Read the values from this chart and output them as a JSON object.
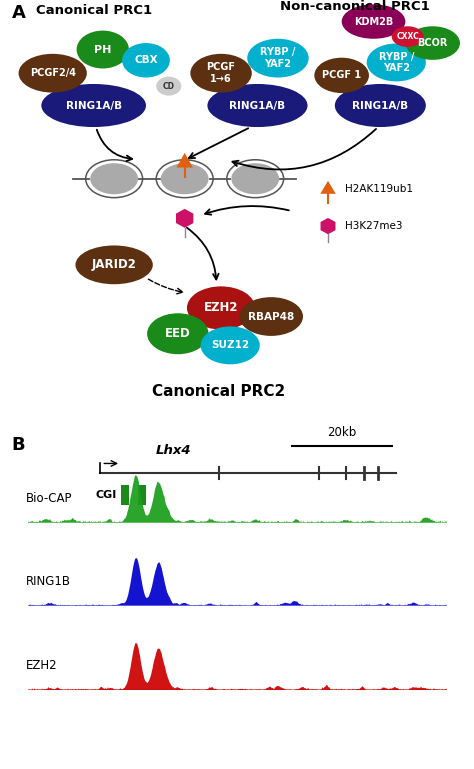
{
  "panel_a_label": "A",
  "panel_b_label": "B",
  "canonical_prc1_title": "Canonical PRC1",
  "noncanonical_prc1_title": "Non-canonical PRC1",
  "canonical_prc2_title": "Canonical PRC2",
  "legend_h2ak": "H2AK119ub1",
  "legend_h3k": "H3K27me3",
  "gene_name": "Lhx4",
  "scale_bar_label": "20kb",
  "cgi_label": "CGI",
  "track_labels": [
    "Bio-CAP",
    "RING1B",
    "EZH2"
  ],
  "track_colors": [
    "#1a9e1a",
    "#0000cc",
    "#cc0000"
  ],
  "colors": {
    "dark_brown": "#5c3010",
    "green": "#1a8a1a",
    "cyan": "#00b0cc",
    "navy": "#1a1a7a",
    "red_dark": "#aa1111",
    "orange": "#e06010",
    "pink_hex": "#cc1166",
    "magenta_dark": "#8b0057",
    "red_cxxc": "#cc1133",
    "gray_nuc": "#aaaaaa",
    "gray_dark": "#555555"
  }
}
